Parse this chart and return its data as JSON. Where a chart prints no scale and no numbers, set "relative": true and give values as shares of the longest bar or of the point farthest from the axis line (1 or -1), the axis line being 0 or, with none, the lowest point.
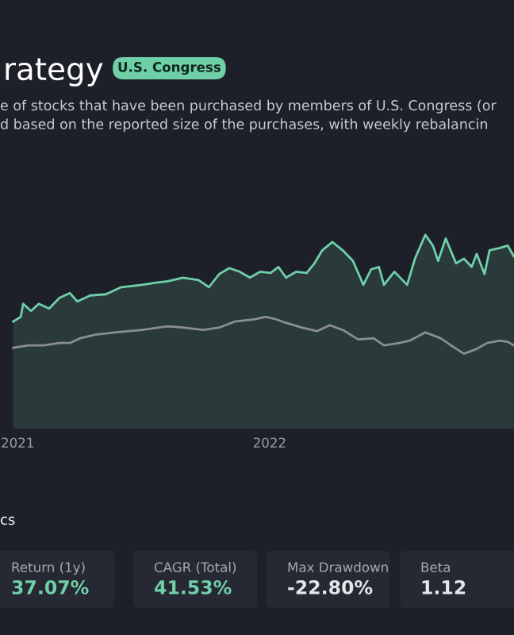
{
  "chart_data": [
    {
      "type": "line",
      "title": "rategy",
      "subtitle": "e of stocks that have been purchased by members of U.S. Congress (or\nd based on the reported size of the purchases, with weekly rebalancin",
      "annotations": [
        "U.S. Congress"
      ],
      "relative": true,
      "grid": false,
      "xlim": [
        2020.93,
        2022.97
      ],
      "xticks": [
        2021,
        2022
      ],
      "series": [
        {
          "type": "area",
          "color": "#6fd0a8",
          "x": [
            2020.982,
            2021.012,
            2021.022,
            2021.053,
            2021.084,
            2021.125,
            2021.166,
            2021.207,
            2021.237,
            2021.288,
            2021.35,
            2021.411,
            2021.493,
            2021.554,
            2021.595,
            2021.656,
            2021.718,
            2021.759,
            2021.8,
            2021.84,
            2021.881,
            2021.922,
            2021.963,
            2022.004,
            2022.035,
            2022.065,
            2022.106,
            2022.147,
            2022.178,
            2022.209,
            2022.249,
            2022.29,
            2022.331,
            2022.372,
            2022.403,
            2022.434,
            2022.454,
            2022.495,
            2022.546,
            2022.577,
            2022.618,
            2022.648,
            2022.669,
            2022.699,
            2022.74,
            2022.771,
            2022.802,
            2022.822,
            2022.853,
            2022.873,
            2022.914,
            2022.945,
            2022.969
          ],
          "values": [
            0.27,
            0.31,
            0.42,
            0.36,
            0.42,
            0.38,
            0.47,
            0.51,
            0.44,
            0.49,
            0.5,
            0.56,
            0.58,
            0.6,
            0.61,
            0.64,
            0.62,
            0.56,
            0.67,
            0.72,
            0.69,
            0.64,
            0.69,
            0.68,
            0.73,
            0.64,
            0.69,
            0.68,
            0.76,
            0.87,
            0.94,
            0.87,
            0.78,
            0.58,
            0.71,
            0.73,
            0.58,
            0.69,
            0.58,
            0.8,
            1.0,
            0.91,
            0.78,
            0.97,
            0.76,
            0.8,
            0.73,
            0.84,
            0.67,
            0.87,
            0.89,
            0.91,
            0.82
          ]
        },
        {
          "type": "line",
          "color": "#8a8d96",
          "x": [
            2020.982,
            2021.043,
            2021.104,
            2021.166,
            2021.207,
            2021.247,
            2021.309,
            2021.391,
            2021.493,
            2021.595,
            2021.656,
            2021.738,
            2021.8,
            2021.861,
            2021.943,
            2021.984,
            2022.025,
            2022.065,
            2022.127,
            2022.188,
            2022.239,
            2022.29,
            2022.352,
            2022.413,
            2022.454,
            2022.515,
            2022.556,
            2022.618,
            2022.679,
            2022.72,
            2022.771,
            2022.822,
            2022.863,
            2022.914,
            2022.945,
            2022.969
          ],
          "values": [
            0.05,
            0.07,
            0.07,
            0.09,
            0.09,
            0.13,
            0.16,
            0.18,
            0.2,
            0.23,
            0.22,
            0.2,
            0.22,
            0.27,
            0.29,
            0.31,
            0.29,
            0.26,
            0.22,
            0.19,
            0.24,
            0.2,
            0.12,
            0.13,
            0.07,
            0.09,
            0.11,
            0.18,
            0.13,
            0.07,
            0,
            0.04,
            0.09,
            0.11,
            0.1,
            0.07
          ]
        }
      ]
    },
    {
      "type": "other",
      "title": "cs",
      "annotations": [
        "Return (1y)",
        "37.07%",
        "CAGR (Total)",
        "41.53%",
        "Max Drawdown",
        "-22.80%",
        "Beta",
        "1.12"
      ]
    }
  ]
}
